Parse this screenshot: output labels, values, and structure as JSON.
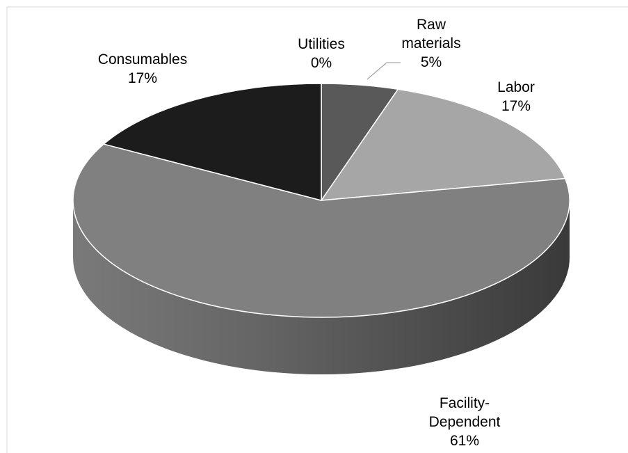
{
  "chart_data": {
    "type": "pie3d",
    "categories": [
      "Utilities",
      "Raw materials",
      "Labor",
      "Facility-Dependent",
      "Consumables"
    ],
    "values": [
      0,
      5,
      17,
      61,
      17
    ],
    "value_labels": [
      "0%",
      "5%",
      "17%",
      "61%",
      "17%"
    ],
    "colors": [
      "#ffffff",
      "#595959",
      "#a6a6a6",
      "#808080",
      "#1c1c1c"
    ]
  }
}
